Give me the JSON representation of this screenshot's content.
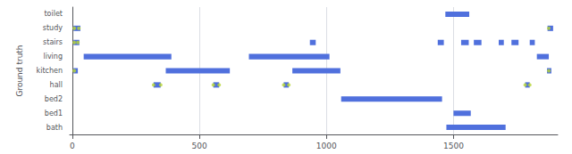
{
  "chart_data": {
    "type": "timeline",
    "ylabel": "Ground truth",
    "categories": [
      "toilet",
      "study",
      "stairs",
      "living",
      "kitchen",
      "hall",
      "bed2",
      "bed1",
      "bath"
    ],
    "segments": [
      [
        [
          1468,
          1562
        ]
      ],
      [
        [
          5,
          32
        ],
        [
          1870,
          1892
        ]
      ],
      [
        [
          5,
          28
        ],
        [
          935,
          958
        ],
        [
          1438,
          1462
        ],
        [
          1530,
          1560
        ],
        [
          1580,
          1610
        ],
        [
          1678,
          1698
        ],
        [
          1728,
          1756
        ],
        [
          1800,
          1820
        ]
      ],
      [
        [
          45,
          390
        ],
        [
          695,
          1012
        ],
        [
          1828,
          1875
        ]
      ],
      [
        [
          5,
          22
        ],
        [
          368,
          620
        ],
        [
          866,
          1055
        ],
        [
          1868,
          1885
        ]
      ],
      [
        [
          320,
          348
        ],
        [
          555,
          578
        ],
        [
          832,
          852
        ],
        [
          1782,
          1800
        ]
      ],
      [
        [
          1058,
          1455
        ]
      ],
      [
        [
          1500,
          1568
        ]
      ],
      [
        [
          1472,
          1705
        ]
      ]
    ],
    "events": [
      [],
      [
        8,
        26,
        1875
      ],
      [
        8,
        22
      ],
      [],
      [
        8,
        1875
      ],
      [
        320,
        348,
        555,
        578,
        832,
        852,
        1782,
        1800
      ],
      [],
      [],
      []
    ],
    "xlim": [
      -10,
      1910
    ],
    "xticks": [
      0,
      500,
      1000,
      1500
    ],
    "grid": true
  }
}
